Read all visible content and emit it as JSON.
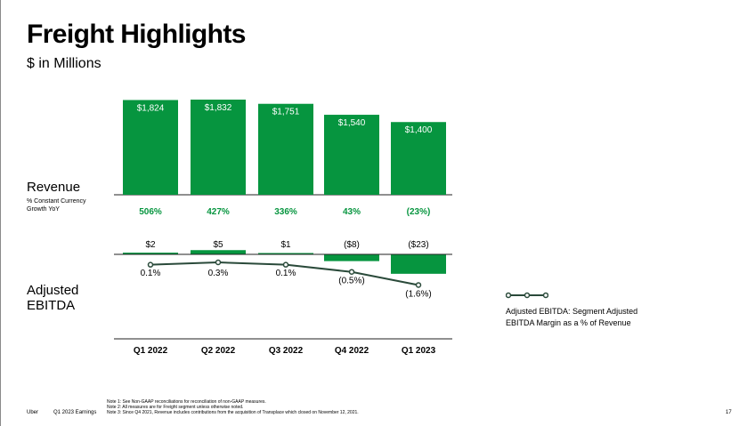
{
  "page": {
    "title": "Freight Highlights",
    "subtitle": "$ in Millions",
    "revenue_label": "Revenue",
    "revenue_note": "% Constant Currency Growth YoY",
    "ebitda_label_line1": "Adjusted",
    "ebitda_label_line2": "EBITDA",
    "legend_label": "Adjusted EBITDA: Segment Adjusted EBITDA Margin as a % of Revenue",
    "footnotes": [
      "Note 1: See Non-GAAP reconciliations for reconciliation of non-GAAP measures.",
      "Note 2: All measures are for Freight segment unless otherwise noted.",
      "Note 3: Since Q4 2021, Revenue includes contributions from the acquisition of Transplace which closed on November 12, 2021."
    ],
    "footer_brand": "Uber",
    "footer_deck": "Q1 2023 Earnings",
    "page_number": "17"
  },
  "colors": {
    "bar": "#06953f",
    "growth_text": "#06953f",
    "line": "#2a4a3a",
    "axis": "#222222"
  },
  "chart_data": [
    {
      "type": "bar",
      "name": "revenue",
      "categories": [
        "Q1 2022",
        "Q2 2022",
        "Q3 2022",
        "Q4 2022",
        "Q1 2023"
      ],
      "values": [
        1824,
        1832,
        1751,
        1540,
        1400
      ],
      "value_labels": [
        "$1,824",
        "$1,832",
        "$1,751",
        "$1,540",
        "$1,400"
      ],
      "growth_labels": [
        "506%",
        "427%",
        "336%",
        "43%",
        "(23%)"
      ],
      "ylim": [
        0,
        1832
      ]
    },
    {
      "type": "bar",
      "name": "adjusted_ebitda",
      "categories": [
        "Q1 2022",
        "Q2 2022",
        "Q3 2022",
        "Q4 2022",
        "Q1 2023"
      ],
      "values": [
        2,
        5,
        1,
        -8,
        -23
      ],
      "value_labels": [
        "$2",
        "$5",
        "$1",
        "($8)",
        "($23)"
      ],
      "ylim": [
        -23,
        5
      ]
    },
    {
      "type": "line",
      "name": "adjusted_ebitda_margin",
      "categories": [
        "Q1 2022",
        "Q2 2022",
        "Q3 2022",
        "Q4 2022",
        "Q1 2023"
      ],
      "values": [
        0.1,
        0.3,
        0.1,
        -0.5,
        -1.6
      ],
      "value_labels": [
        "0.1%",
        "0.3%",
        "0.1%",
        "(0.5%)",
        "(1.6%)"
      ],
      "legend": "Adjusted EBITDA: Segment Adjusted EBITDA Margin as a % of Revenue",
      "ylim": [
        -1.6,
        0.3
      ]
    }
  ]
}
